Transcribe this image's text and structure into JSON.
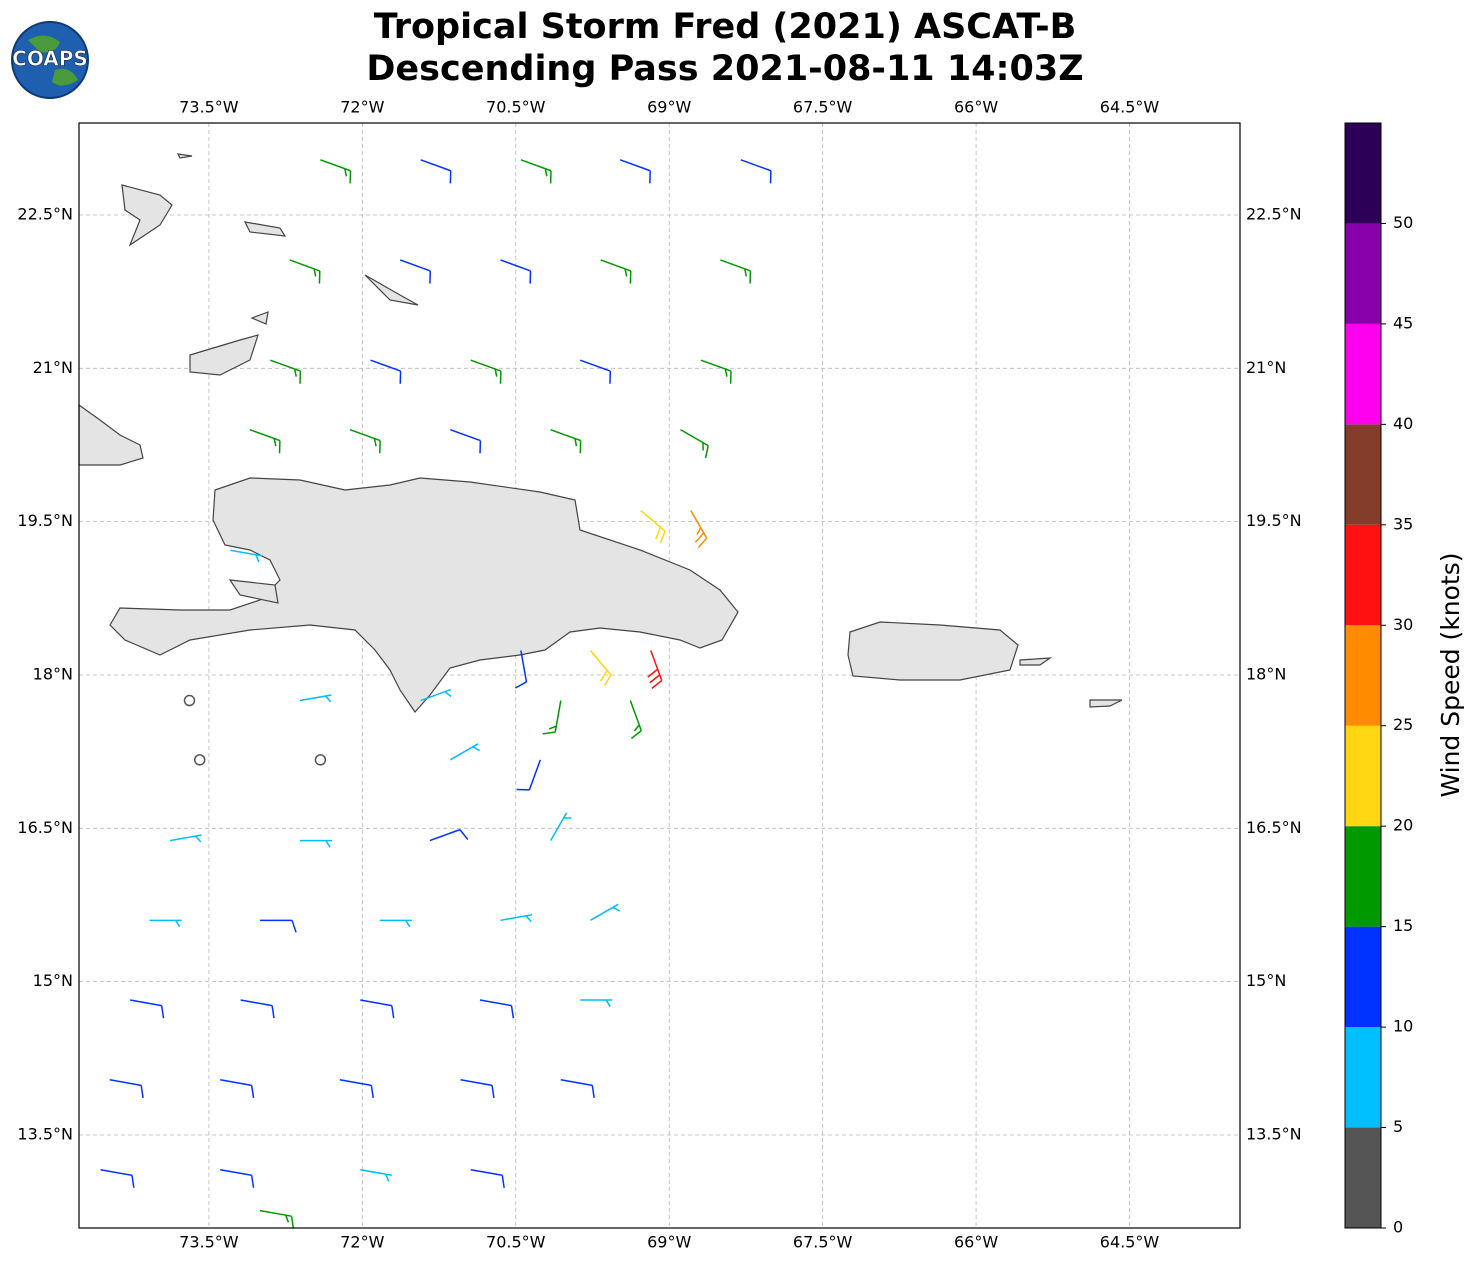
{
  "chart_data": {
    "type": "barbs",
    "logo": "COAPS",
    "title": [
      "Tropical Storm Fred (2021) ASCAT-B",
      "Descending Pass 2021-08-11 14:03Z"
    ],
    "xlim": [
      -74.77,
      -63.42
    ],
    "ylim": [
      12.59,
      23.4
    ],
    "xticks": [
      {
        "value": -73.5,
        "label": "73.5°W"
      },
      {
        "value": -72,
        "label": "72°W"
      },
      {
        "value": -70.5,
        "label": "70.5°W"
      },
      {
        "value": -69,
        "label": "69°W"
      },
      {
        "value": -67.5,
        "label": "67.5°W"
      },
      {
        "value": -66,
        "label": "66°W"
      },
      {
        "value": -64.5,
        "label": "64.5°W"
      }
    ],
    "yticks": [
      {
        "value": 22.5,
        "label": "22.5°N"
      },
      {
        "value": 21,
        "label": "21°N"
      },
      {
        "value": 19.5,
        "label": "19.5°N"
      },
      {
        "value": 18,
        "label": "18°N"
      },
      {
        "value": 16.5,
        "label": "16.5°N"
      },
      {
        "value": 15,
        "label": "15°N"
      },
      {
        "value": 13.5,
        "label": "13.5°N"
      }
    ],
    "grid": true,
    "colorbar": {
      "label": "Wind Speed (knots)",
      "levels": [
        0,
        5,
        10,
        15,
        20,
        25,
        30,
        35,
        40,
        45,
        50,
        55
      ],
      "colors": [
        "#555555",
        "#00bfff",
        "#0033ff",
        "#009900",
        "#ffd611",
        "#ff8c00",
        "#ff1111",
        "#833d2a",
        "#ff00ee",
        "#8800aa",
        "#2d0057"
      ],
      "ticks": [
        0,
        5,
        10,
        15,
        20,
        25,
        30,
        35,
        40,
        45,
        50
      ]
    },
    "barbs": {
      "lon": [
        -72.41,
        -71.43,
        -70.45,
        -69.48,
        -68.3,
        -72.71,
        -71.63,
        -70.65,
        -69.67,
        -68.5,
        -72.9,
        -71.92,
        -70.94,
        -69.87,
        -68.69,
        -73.1,
        -72.12,
        -71.14,
        -70.16,
        -68.89,
        -69.28,
        -68.79,
        -73.29,
        -69.77,
        -70.45,
        -69.18,
        -73.69,
        -72.61,
        -71.43,
        -70.06,
        -69.38,
        -73.59,
        -72.41,
        -71.14,
        -70.26,
        -73.88,
        -72.61,
        -71.34,
        -70.16,
        -74.08,
        -73.0,
        -71.83,
        -70.65,
        -69.77,
        -74.27,
        -73.19,
        -72.02,
        -70.85,
        -69.87,
        -74.47,
        -73.39,
        -72.22,
        -71.04,
        -70.06,
        -74.56,
        -73.39,
        -72.02,
        -70.94,
        -73.0
      ],
      "lat": [
        23.04,
        23.04,
        23.04,
        23.04,
        23.04,
        22.06,
        22.06,
        22.06,
        22.06,
        22.06,
        21.08,
        21.08,
        21.08,
        21.08,
        21.08,
        20.4,
        20.4,
        20.4,
        20.4,
        20.4,
        19.61,
        19.61,
        19.22,
        18.24,
        18.24,
        18.24,
        17.75,
        17.75,
        17.75,
        17.75,
        17.75,
        17.17,
        17.17,
        17.17,
        17.17,
        16.38,
        16.38,
        16.38,
        16.38,
        15.6,
        15.6,
        15.6,
        15.6,
        15.6,
        14.82,
        14.82,
        14.82,
        14.82,
        14.82,
        14.04,
        14.04,
        14.04,
        14.04,
        14.04,
        13.16,
        13.16,
        13.16,
        13.16,
        12.76
      ],
      "speed": [
        17,
        13,
        17,
        13,
        13,
        17,
        13,
        13,
        17,
        17,
        17,
        13,
        17,
        13,
        17,
        17,
        17,
        13,
        17,
        17,
        22,
        27,
        8,
        22,
        13,
        32,
        3,
        8,
        8,
        17,
        17,
        3,
        4,
        8,
        13,
        8,
        8,
        13,
        8,
        8,
        13,
        8,
        8,
        8,
        13,
        13,
        13,
        13,
        8,
        13,
        13,
        13,
        13,
        13,
        13,
        13,
        8,
        13,
        17
      ],
      "direction": [
        110,
        110,
        110,
        110,
        110,
        110,
        110,
        110,
        110,
        110,
        110,
        110,
        110,
        110,
        110,
        110,
        110,
        110,
        110,
        120,
        130,
        150,
        100,
        140,
        170,
        160,
        90,
        80,
        70,
        190,
        160,
        90,
        120,
        60,
        200,
        80,
        90,
        70,
        30,
        90,
        90,
        90,
        80,
        60,
        100,
        100,
        100,
        100,
        90,
        100,
        100,
        100,
        100,
        100,
        100,
        100,
        100,
        100,
        100
      ]
    }
  }
}
